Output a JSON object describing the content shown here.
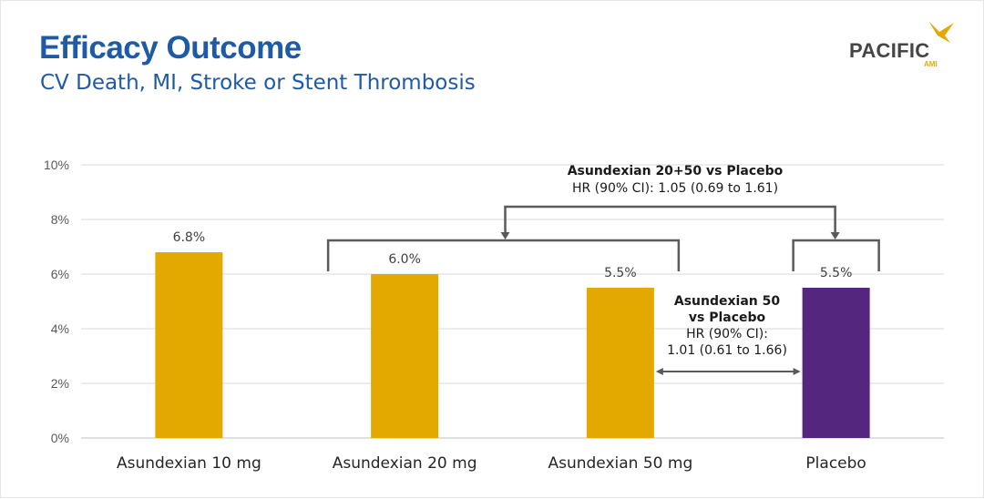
{
  "title": "Efficacy Outcome",
  "subtitle": "CV Death, MI, Stroke or Stent Thrombosis",
  "logo": {
    "name": "PACIFIC",
    "sub": "AMI",
    "icon": "bird-icon"
  },
  "colors": {
    "title": "#1f5aa6",
    "asundexian": "#e3a900",
    "placebo": "#55267e",
    "bracket": "#5a5a5a"
  },
  "chart_data": {
    "type": "bar",
    "categories": [
      "Asundexian 10 mg",
      "Asundexian 20 mg",
      "Asundexian 50 mg",
      "Placebo"
    ],
    "values": [
      6.8,
      6.0,
      5.5,
      5.5
    ],
    "data_labels": [
      "6.8%",
      "6.0%",
      "5.5%",
      "5.5%"
    ],
    "ylim": [
      0,
      10
    ],
    "yticks": [
      0,
      2,
      4,
      6,
      8,
      10
    ],
    "ytick_labels": [
      "0%",
      "2%",
      "4%",
      "6%",
      "8%",
      "10%"
    ],
    "grid": true,
    "title": "",
    "xlabel": "",
    "ylabel": "",
    "annotations": [
      {
        "lines_bold": [
          "Asundexian 20+50 vs Placebo"
        ],
        "lines": [
          "HR (90% CI): 1.05 (0.69 to 1.61)"
        ]
      },
      {
        "lines_bold": [
          "Asundexian 50",
          "vs Placebo"
        ],
        "lines": [
          "HR (90% CI):",
          "1.01 (0.61 to 1.66)"
        ]
      }
    ]
  }
}
